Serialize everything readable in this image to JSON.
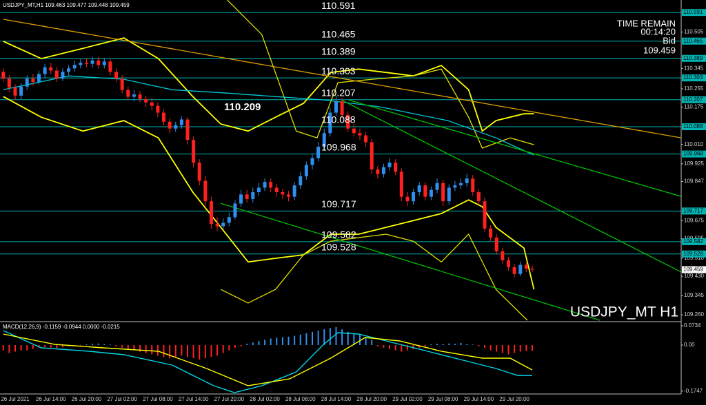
{
  "chart_data": [
    {
      "type": "candlestick",
      "header": "USDJPY_MT,H1",
      "info": [
        "TIME REMAIN",
        "00:14:20",
        "Bid"
      ],
      "annotation": "110.209",
      "watermark": "USDJPY_MT H1",
      "categories": [
        null,
        null,
        "26 Jul 2021",
        null,
        null,
        null,
        null,
        null,
        "26 Jul 14:00",
        null,
        null,
        null,
        null,
        null,
        "26 Jul 20:00",
        null,
        null,
        null,
        null,
        null,
        "27 Jul 02:00",
        null,
        null,
        null,
        null,
        null,
        "27 Jul 08:00",
        null,
        null,
        null,
        null,
        null,
        "27 Jul 14:00",
        null,
        null,
        null,
        null,
        null,
        "27 Jul 20:00",
        null,
        null,
        null,
        null,
        null,
        "28 Jul 02:00",
        null,
        null,
        null,
        null,
        null,
        "28 Jul 08:00",
        null,
        null,
        null,
        null,
        null,
        "28 Jul 14:00",
        null,
        null,
        null,
        null,
        null,
        "28 Jul 20:00",
        null,
        null,
        null,
        null,
        null,
        "29 Jul 02:00",
        null,
        null,
        null,
        null,
        null,
        "29 Jul 08:00",
        null,
        null,
        null,
        null,
        null,
        "29 Jul 14:00",
        null,
        null,
        null,
        null,
        null,
        "29 Jul 20:00",
        null,
        null,
        null
      ],
      "open": [
        110.33,
        110.3,
        110.26,
        110.225,
        110.265,
        110.3,
        110.285,
        110.32,
        110.35,
        110.335,
        110.3,
        110.33,
        110.345,
        110.36,
        110.37,
        110.365,
        110.38,
        110.36,
        110.375,
        110.33,
        110.3,
        110.25,
        110.22,
        110.23,
        110.21,
        110.195,
        110.18,
        110.15,
        110.11,
        110.08,
        110.095,
        110.12,
        110.03,
        109.93,
        109.85,
        109.76,
        109.66,
        109.65,
        109.665,
        109.69,
        109.75,
        109.79,
        109.77,
        109.8,
        109.82,
        109.845,
        109.82,
        109.8,
        109.79,
        109.78,
        109.83,
        109.87,
        109.92,
        109.95,
        110.0,
        110.06,
        110.15,
        110.2,
        110.14,
        110.08,
        110.06,
        110.05,
        110.02,
        109.9,
        109.88,
        109.91,
        109.93,
        109.89,
        109.78,
        109.76,
        109.8,
        109.83,
        109.78,
        109.81,
        109.84,
        109.76,
        109.82,
        109.83,
        109.84,
        109.86,
        109.8,
        109.76,
        109.64,
        109.6,
        109.54,
        109.5,
        109.47,
        109.44,
        109.48,
        109.463
      ],
      "high": [
        110.345,
        110.315,
        110.275,
        110.28,
        110.315,
        110.32,
        110.335,
        110.365,
        110.37,
        110.35,
        110.345,
        110.36,
        110.38,
        110.385,
        110.39,
        110.395,
        110.395,
        110.39,
        110.385,
        110.345,
        110.315,
        110.265,
        110.25,
        110.245,
        110.225,
        110.215,
        110.195,
        110.165,
        110.125,
        110.11,
        110.135,
        110.13,
        110.045,
        109.945,
        109.87,
        109.78,
        109.69,
        109.685,
        109.71,
        109.765,
        109.81,
        109.81,
        109.82,
        109.84,
        109.86,
        109.86,
        109.835,
        109.815,
        109.805,
        109.845,
        109.89,
        109.935,
        109.97,
        110.02,
        110.08,
        110.17,
        110.225,
        110.215,
        110.155,
        110.1,
        110.08,
        110.065,
        110.035,
        109.915,
        109.925,
        109.95,
        109.945,
        109.905,
        109.8,
        109.815,
        109.845,
        109.845,
        109.825,
        109.86,
        109.855,
        109.835,
        109.85,
        109.86,
        109.88,
        109.875,
        109.815,
        109.775,
        109.655,
        109.615,
        109.555,
        109.515,
        109.485,
        109.495,
        109.49,
        109.477
      ],
      "low": [
        110.285,
        110.24,
        110.205,
        110.21,
        110.25,
        110.27,
        110.275,
        110.305,
        110.32,
        110.285,
        110.29,
        110.315,
        110.33,
        110.345,
        110.35,
        110.35,
        110.345,
        110.345,
        110.315,
        110.285,
        110.235,
        110.205,
        110.2,
        110.195,
        110.175,
        110.16,
        110.13,
        110.095,
        110.06,
        110.065,
        110.08,
        110.01,
        109.91,
        109.83,
        109.74,
        109.64,
        109.63,
        109.635,
        109.65,
        109.68,
        109.735,
        109.755,
        109.755,
        109.785,
        109.805,
        109.8,
        109.78,
        109.77,
        109.76,
        109.765,
        109.815,
        109.855,
        109.9,
        109.935,
        109.985,
        110.045,
        110.135,
        110.125,
        110.065,
        110.045,
        110.03,
        110.0,
        109.88,
        109.86,
        109.865,
        109.895,
        109.875,
        109.76,
        109.74,
        109.745,
        109.785,
        109.765,
        109.765,
        109.795,
        109.74,
        109.745,
        109.805,
        109.815,
        109.825,
        109.785,
        109.745,
        109.625,
        109.585,
        109.525,
        109.485,
        109.455,
        109.425,
        109.43,
        109.448,
        109.448
      ],
      "close": [
        110.3,
        110.26,
        110.225,
        110.265,
        110.3,
        110.285,
        110.32,
        110.35,
        110.335,
        110.3,
        110.33,
        110.345,
        110.36,
        110.37,
        110.365,
        110.38,
        110.36,
        110.375,
        110.33,
        110.3,
        110.25,
        110.22,
        110.23,
        110.21,
        110.195,
        110.18,
        110.15,
        110.11,
        110.08,
        110.095,
        110.12,
        110.03,
        109.93,
        109.85,
        109.76,
        109.66,
        109.65,
        109.665,
        109.69,
        109.75,
        109.79,
        109.77,
        109.8,
        109.82,
        109.845,
        109.82,
        109.8,
        109.79,
        109.78,
        109.83,
        109.87,
        109.92,
        109.95,
        110.0,
        110.06,
        110.15,
        110.2,
        110.14,
        110.08,
        110.06,
        110.05,
        110.02,
        109.9,
        109.88,
        109.91,
        109.93,
        109.89,
        109.78,
        109.76,
        109.8,
        109.83,
        109.78,
        109.81,
        109.84,
        109.76,
        109.82,
        109.83,
        109.84,
        109.86,
        109.8,
        109.76,
        109.64,
        109.6,
        109.54,
        109.5,
        109.47,
        109.44,
        109.48,
        109.463,
        109.459
      ],
      "up_color": "#2f8fef",
      "down_color": "#ff2020",
      "ylim": [
        109.233,
        110.646
      ],
      "yticks": [
        110.505,
        110.345,
        110.255,
        110.175,
        {
          "value": 110.01,
          "label": "110.010"
        },
        109.925,
        109.847,
        109.675,
        109.595,
        {
          "value": 109.51,
          "label": "109.510"
        },
        {
          "value": 109.43,
          "label": "109.430"
        },
        109.345,
        {
          "value": 109.26,
          "label": "109.260"
        }
      ],
      "levels": [
        110.591,
        110.465,
        110.389,
        110.303,
        110.207,
        110.088,
        109.968,
        109.717,
        109.582,
        109.528
      ],
      "level_color": "#00b4b4",
      "overlays": [
        {
          "color": "#ffff00",
          "x": [
            0,
            6.4,
            13.4,
            20.3,
            26.1,
            31.9,
            36.6,
            41.2,
            45.8,
            50.5,
            55.1,
            59.8,
            64.4,
            69,
            73.7,
            78.3,
            80.6,
            82.9,
            87.6,
            89.3
          ],
          "values": [
            110.464,
            110.388,
            110.433,
            110.479,
            110.388,
            110.221,
            110.1,
            110.069,
            110.13,
            110.191,
            110.327,
            110.342,
            110.327,
            110.312,
            110.358,
            110.251,
            110.069,
            110.115,
            110.145,
            110.145
          ]
        },
        {
          "color": "#ffff00",
          "x": [
            0,
            6.4,
            13.4,
            20.3,
            26.1,
            31.9,
            36.6,
            41.2,
            45.8,
            50.5,
            55.1,
            59.8,
            64.4,
            69,
            73.7,
            78.3,
            80.6,
            82.9,
            87.6,
            89.3
          ],
          "values": [
            110.221,
            110.13,
            110.069,
            110.115,
            110.039,
            109.8,
            109.645,
            109.493,
            109.509,
            109.524,
            109.615,
            109.615,
            109.645,
            109.675,
            109.706,
            109.766,
            109.736,
            109.645,
            109.554,
            109.372
          ]
        },
        {
          "color": "#e0e000",
          "x": [
            37.7,
            43.5,
            49.3,
            52.8,
            56.3,
            62.1,
            69,
            73.7,
            78.3,
            80.6,
            85.3,
            89.3
          ],
          "values": [
            110.646,
            110.494,
            110.069,
            110.039,
            110.282,
            110.297,
            110.312,
            110.342,
            110.13,
            109.994,
            110.039,
            110.009
          ]
        },
        {
          "color": "#e0e000",
          "x": [
            36.6,
            41.2,
            45.8,
            50.5,
            55.1,
            59.8,
            64.4,
            69,
            73.7,
            78.3,
            82.9,
            88.2
          ],
          "values": [
            109.372,
            109.312,
            109.372,
            109.524,
            109.584,
            109.6,
            109.615,
            109.584,
            109.493,
            109.615,
            109.372,
            109.236
          ]
        },
        {
          "color": "#00c8d8",
          "x": [
            0,
            11.0,
            20.3,
            28.4,
            37.7,
            45.8,
            54.0,
            63.3,
            74.8,
            82.9,
            89.3
          ],
          "values": [
            110.251,
            110.312,
            110.297,
            110.251,
            110.236,
            110.221,
            110.206,
            110.176,
            110.115,
            110.039,
            109.963
          ]
        },
        {
          "color": "#e0a000",
          "x": [
            0,
            114.1
          ],
          "values": [
            110.561,
            110.039
          ]
        },
        {
          "color": "#00c000",
          "x": [
            58.1,
            114.1
          ],
          "values": [
            110.206,
            109.781
          ]
        },
        {
          "color": "#00c000",
          "x": [
            56.9,
            114.1
          ],
          "values": [
            110.206,
            109.448
          ]
        },
        {
          "color": "#00c000",
          "x": [
            36.6,
            100.4
          ],
          "values": [
            109.751,
            109.236
          ]
        }
      ]
    },
    {
      "type": "macd",
      "label": "MACD(12,26,9) -0.1159 -0.0944 0.0000 -0.0215",
      "values": [
        -0.02,
        -0.03,
        -0.025,
        -0.02,
        -0.02,
        -0.015,
        -0.01,
        -0.008,
        -0.01,
        -0.012,
        -0.008,
        -0.005,
        -0.003,
        -0.002,
        0.003,
        0.005,
        0.006,
        0.004,
        0.002,
        -0.005,
        -0.01,
        -0.015,
        -0.02,
        -0.025,
        -0.03,
        -0.035,
        -0.04,
        -0.045,
        -0.05,
        -0.045,
        -0.04,
        -0.045,
        -0.05,
        -0.055,
        -0.05,
        -0.045,
        -0.04,
        -0.03,
        -0.02,
        -0.01,
        -0.005,
        0.005,
        0.01,
        0.015,
        0.02,
        0.025,
        0.028,
        0.03,
        0.032,
        0.035,
        0.04,
        0.045,
        0.05,
        0.055,
        0.06,
        0.065,
        0.068,
        0.06,
        0.05,
        0.045,
        0.04,
        0.03,
        0.02,
        -0.005,
        -0.01,
        -0.015,
        -0.02,
        -0.025,
        -0.02,
        -0.015,
        -0.01,
        -0.005,
        0.003,
        0.005,
        0.004,
        0.006,
        0.005,
        0.008,
        0.004,
        0.002,
        -0.005,
        -0.01,
        -0.02,
        -0.025,
        -0.03,
        -0.035,
        -0.03,
        -0.025,
        -0.022,
        -0.0215
      ],
      "up_color": "#2f8fef",
      "down_color": "#ff2020",
      "ylim": [
        -0.1858,
        0.0864
      ],
      "yticks": [
        0.0734,
        {
          "value": 0,
          "label": "0.00"
        },
        -0.1747
      ],
      "lines": [
        {
          "color": "#00d8e8",
          "x": [
            0,
            6.4,
            14.5,
            20.3,
            28.4,
            35.4,
            38.9,
            43.5,
            49.3,
            53.9,
            56.3,
            59.8,
            64.4,
            71.4,
            78.3,
            82.9,
            86.5,
            89
          ],
          "values": [
            0.055,
            -0.0105,
            -0.0236,
            -0.0366,
            -0.0759,
            -0.1545,
            -0.1806,
            -0.1545,
            -0.1021,
            0.0026,
            0.0471,
            0.0419,
            0.0157,
            -0.0236,
            -0.0628,
            -0.089,
            -0.1152,
            -0.1159
          ]
        },
        {
          "color": "#ffff00",
          "x": [
            0,
            8.7,
            16.8,
            26.1,
            34.2,
            41.2,
            48.2,
            55.1,
            60.9,
            66.7,
            73.7,
            80.6,
            85.3,
            89
          ],
          "values": [
            0.0419,
            0.0026,
            -0.0105,
            -0.0236,
            -0.089,
            -0.1545,
            -0.1283,
            -0.0497,
            0.0288,
            0.0157,
            -0.0236,
            -0.0497,
            -0.0497,
            -0.0944
          ]
        }
      ]
    }
  ]
}
